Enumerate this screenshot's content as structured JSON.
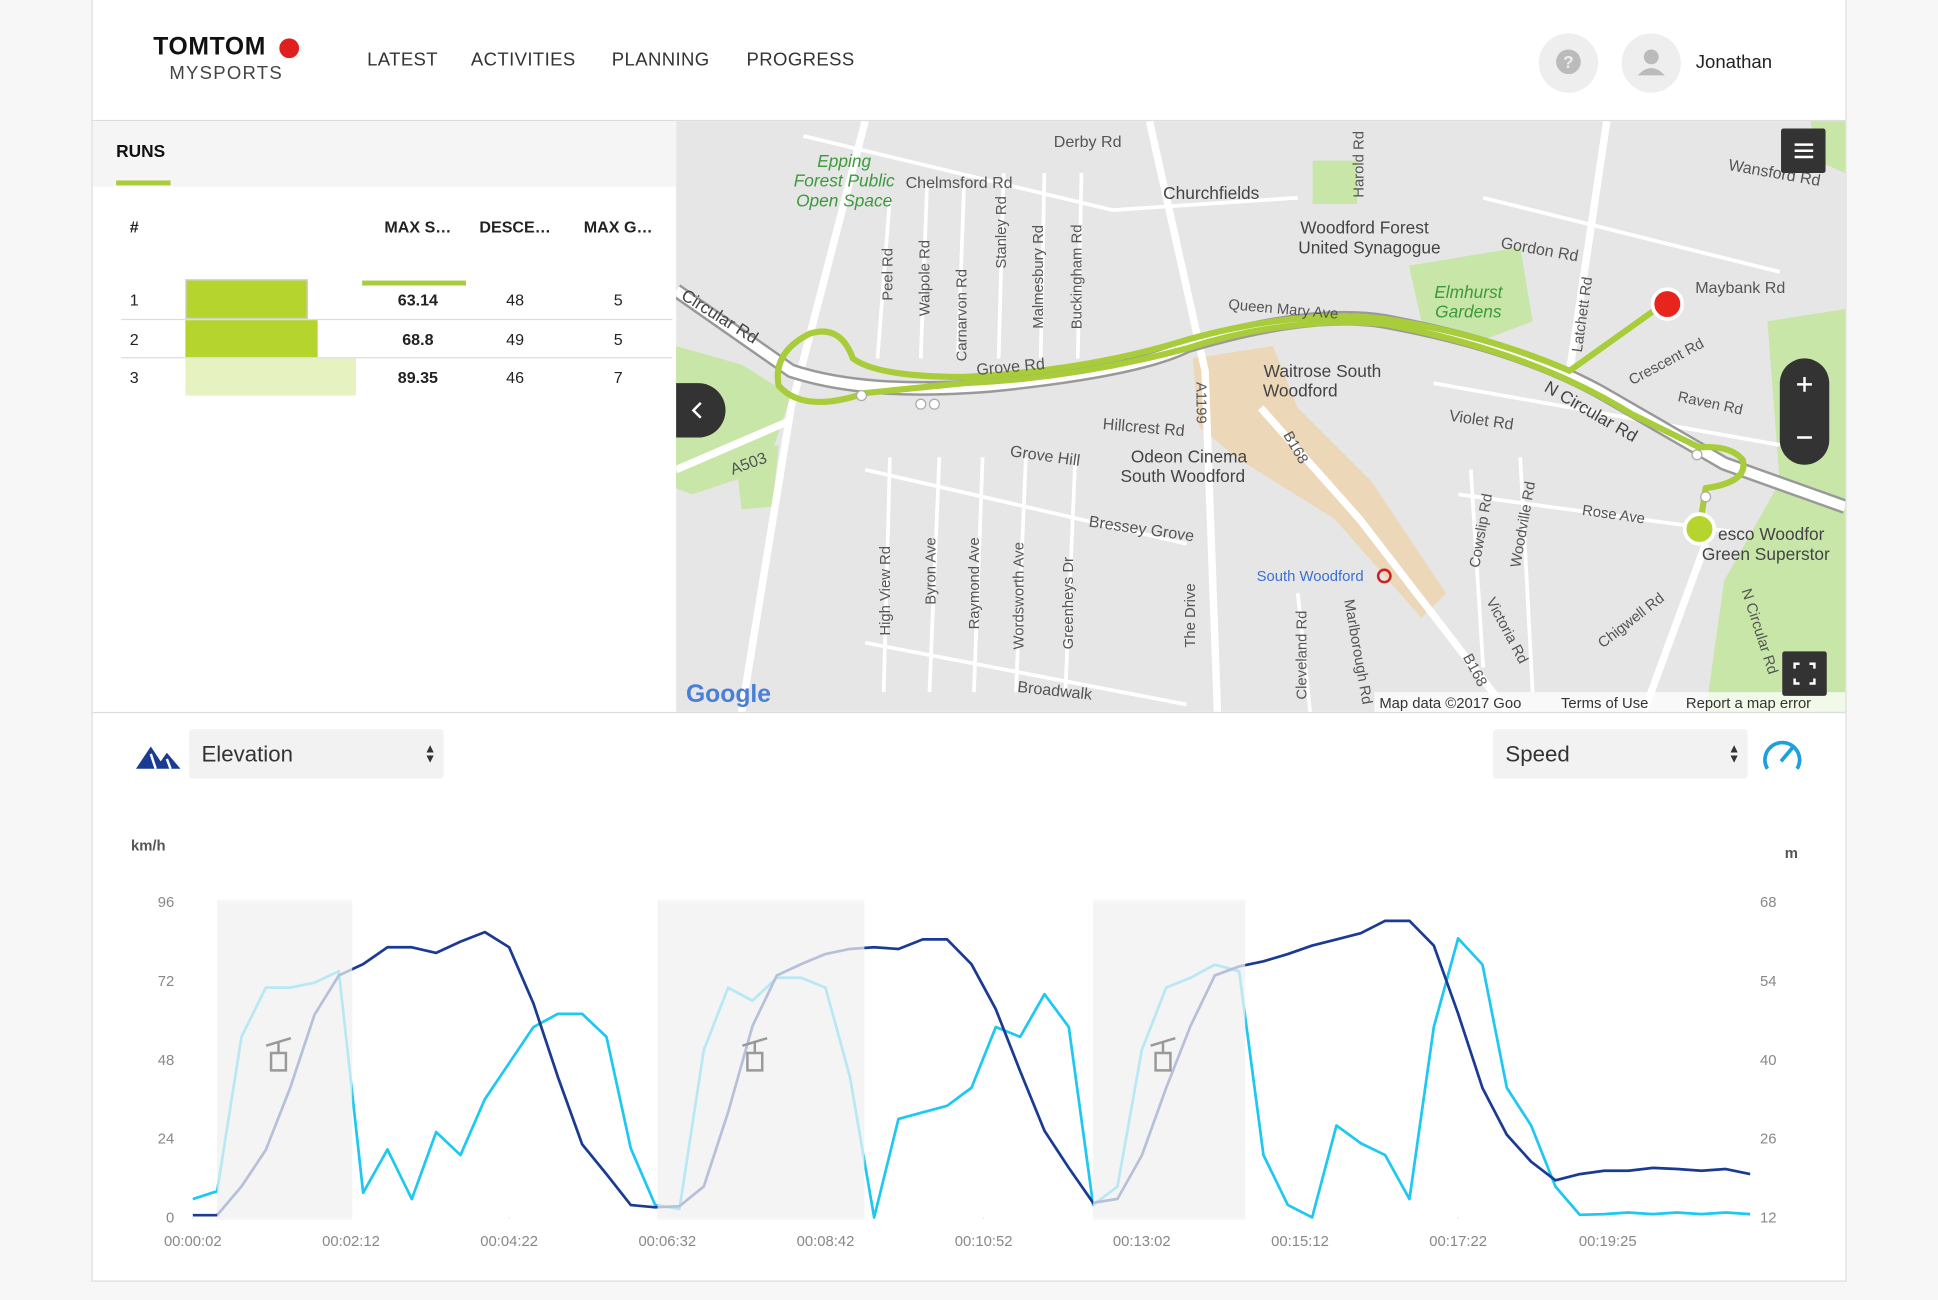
{
  "header": {
    "logo": "TOMTOM",
    "logo_sub": "MYSPORTS",
    "nav": [
      "LATEST",
      "ACTIVITIES",
      "PLANNING",
      "PROGRESS"
    ],
    "user": "Jonathan"
  },
  "runs": {
    "tab": "RUNS",
    "columns": [
      "#",
      "MAX S…",
      "DESCE…",
      "MAX G…"
    ],
    "rows": [
      [
        1,
        63.14,
        48,
        5
      ],
      [
        2,
        68.8,
        49,
        5
      ],
      [
        3,
        89.35,
        46,
        7
      ]
    ]
  },
  "map": {
    "labels": [
      "Derby Rd",
      "Chelmsford Rd",
      "Churchfields",
      "Woodford Forest",
      "United Synagogue",
      "Gordon Rd",
      "Maybank Rd",
      "Elmhurst",
      "Gardens",
      "Queen Mary Ave",
      "Circular Rd",
      "Peel Rd",
      "Walpole Rd",
      "Carnarvon Rd",
      "Stanley Rd",
      "Malmesbury Rd",
      "Buckingham Rd",
      "Grove Rd",
      "Waitrose South",
      "Woodford",
      "Crescent Rd",
      "Raven Rd",
      "N Circular Rd",
      "Violet Rd",
      "Hillcrest Rd",
      "Odeon Cinema",
      "South Woodford",
      "Grove Hill",
      "A503",
      "A1199",
      "B168",
      "Rose Ave",
      "Bressey Grove",
      "esco Woodfor",
      "Green Superstor",
      "South Woodford",
      "High View Rd",
      "Byron Ave",
      "Raymond Ave",
      "Wordsworth Ave",
      "Greenheys Dr",
      "The Drive",
      "Cowslip Rd",
      "Woodville Rd",
      "Victoria Rd",
      "Chigwell Rd",
      "N Circular Rd",
      "Cleveland Rd",
      "Marlborough Rd",
      "Broadwalk",
      "Harold Rd",
      "Latchett Rd",
      "Wansford Rd",
      "Epping",
      "Forest Public",
      "Open Space",
      "B168"
    ],
    "logo": "Google",
    "attribution": [
      "Map data ©2017 Goo",
      "Terms of Use",
      "Report a map error"
    ]
  },
  "controls": {
    "left_select": "Elevation",
    "right_select": "Speed"
  },
  "chart": {
    "type": "line",
    "y_label": "km/h",
    "y2_label": "m",
    "x": [
      2,
      22,
      42,
      62,
      82,
      102,
      122,
      142,
      162,
      182,
      202,
      222,
      242,
      262,
      282,
      302,
      322,
      342,
      362,
      382,
      402,
      422,
      442,
      462,
      482,
      502,
      522,
      542,
      562,
      582,
      602,
      622,
      642,
      662,
      682,
      702,
      722,
      742,
      762,
      782,
      802,
      822,
      842,
      862,
      882,
      902,
      922,
      942,
      962,
      982,
      1002,
      1022,
      1042,
      1062,
      1082,
      1102,
      1122,
      1142,
      1162,
      1182,
      1202,
      1222,
      1242,
      1262,
      1282
    ],
    "xlim": [
      2,
      1282
    ],
    "xticks": [
      {
        "value": 2,
        "label": "00:00:02"
      },
      {
        "value": 132,
        "label": "00:02:12"
      },
      {
        "value": 262,
        "label": "00:04:22"
      },
      {
        "value": 392,
        "label": "00:06:32"
      },
      {
        "value": 522,
        "label": "00:08:42"
      },
      {
        "value": 652,
        "label": "00:10:52"
      },
      {
        "value": 782,
        "label": "00:13:02"
      },
      {
        "value": 912,
        "label": "00:15:12"
      },
      {
        "value": 1042,
        "label": "00:17:22"
      },
      {
        "value": 1165,
        "label": "00:19:25"
      }
    ],
    "ylim": [
      0,
      96
    ],
    "yticks": [
      0,
      24,
      48,
      72,
      96
    ],
    "y2lim": [
      12,
      68
    ],
    "y2ticks": [
      12,
      26,
      40,
      54,
      68
    ],
    "grid": false,
    "lifts": [
      [
        22,
        133
      ],
      [
        384,
        554
      ],
      [
        742,
        867
      ]
    ],
    "series": [
      {
        "name": "Speed",
        "color": "#1ec8f0",
        "axis": "y",
        "values": [
          5.6,
          8,
          55,
          70,
          70,
          71.5,
          75,
          7.5,
          20.7,
          5.6,
          26,
          19,
          36,
          47,
          58,
          62,
          62,
          55,
          21,
          3.8,
          2.6,
          51,
          70,
          66,
          73,
          73,
          70,
          43,
          0,
          30,
          32,
          34,
          39.5,
          58,
          55,
          68,
          58,
          3.8,
          9.4,
          51,
          70,
          73,
          77,
          75,
          19,
          3.8,
          0,
          28,
          22.6,
          19,
          5.6,
          58,
          85,
          77,
          39.5,
          28,
          9.4,
          0.8,
          1,
          1.5,
          1,
          1.5,
          1,
          1.5,
          1
        ]
      },
      {
        "name": "Elevation",
        "color": "#1b3a93",
        "axis": "y2",
        "values": [
          12.4,
          12.4,
          17.5,
          24,
          35,
          48,
          55,
          57,
          60,
          60,
          59,
          61,
          62.7,
          60,
          50,
          37,
          25,
          19.7,
          14.2,
          13.8,
          14,
          17.5,
          30.7,
          46,
          55,
          57,
          58.8,
          59.7,
          60,
          59.7,
          61.4,
          61.4,
          57,
          49,
          38,
          27.4,
          20.8,
          14.6,
          15.3,
          23,
          35,
          46,
          55,
          56.6,
          57.5,
          58.8,
          60.3,
          61.4,
          62.5,
          64.7,
          64.7,
          60.3,
          48.2,
          35,
          26.7,
          21.9,
          18.6,
          19.7,
          20.3,
          20.3,
          20.8,
          20.6,
          20.3,
          20.6,
          19.7
        ]
      }
    ]
  }
}
